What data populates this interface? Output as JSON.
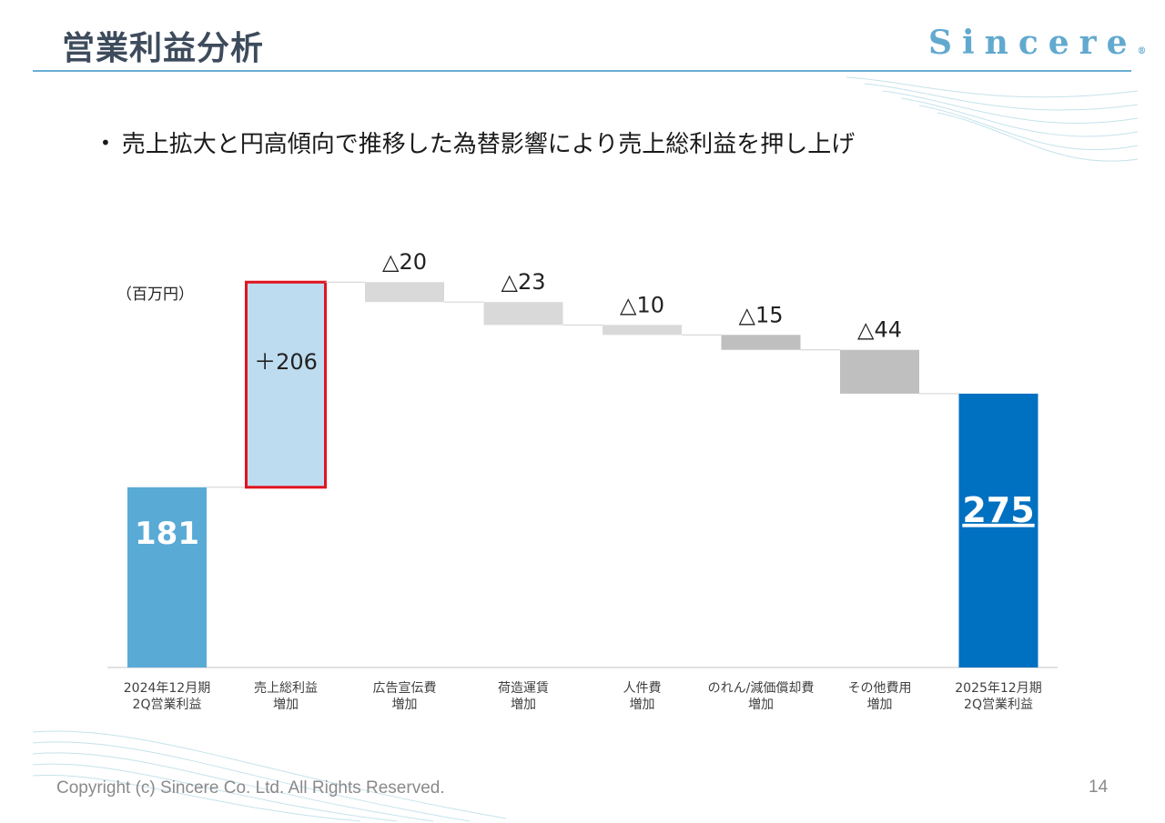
{
  "slide": {
    "title": "営業利益分析",
    "brand": "Sincere",
    "brand_mark": "®",
    "bullet": "売上拡大と円高傾向で推移した為替影響により売上総利益を押し上げ",
    "copyright": "Copyright (c) Sincere Co. Ltd. All Rights Reserved.",
    "page_number": "14"
  },
  "chart_data": {
    "type": "waterfall",
    "unit_label": "（百万円）",
    "ylim": [
      0,
      300
    ],
    "steps": [
      {
        "label_line1": "2024年12月期",
        "label_line2": "2Q営業利益",
        "kind": "total",
        "value": 181,
        "value_label": "181",
        "color": "#5aaad6"
      },
      {
        "label_line1": "売上総利益",
        "label_line2": "増加",
        "kind": "delta",
        "value": 206,
        "value_label": "＋206",
        "color": "#bddcf0",
        "highlight": "#e0141e"
      },
      {
        "label_line1": "広告宣伝費",
        "label_line2": "増加",
        "kind": "delta",
        "value": -20,
        "value_label": "△20",
        "color": "#d9d9d9"
      },
      {
        "label_line1": "荷造運賃",
        "label_line2": "増加",
        "kind": "delta",
        "value": -23,
        "value_label": "△23",
        "color": "#d9d9d9"
      },
      {
        "label_line1": "人件費",
        "label_line2": "増加",
        "kind": "delta",
        "value": -10,
        "value_label": "△10",
        "color": "#d9d9d9"
      },
      {
        "label_line1": "のれん/減価償却費",
        "label_line2": "増加",
        "kind": "delta",
        "value": -15,
        "value_label": "△15",
        "color": "#bfbfbf"
      },
      {
        "label_line1": "その他費用",
        "label_line2": "増加",
        "kind": "delta",
        "value": -44,
        "value_label": "△44",
        "color": "#bfbfbf"
      },
      {
        "label_line1": "2025年12月期",
        "label_line2": "2Q営業利益",
        "kind": "total",
        "value": 275,
        "value_label": "275",
        "color": "#0070c0"
      }
    ]
  }
}
